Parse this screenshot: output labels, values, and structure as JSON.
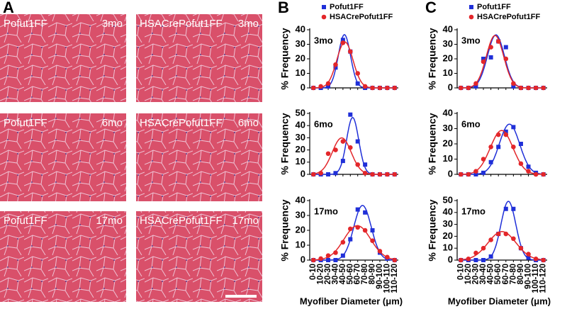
{
  "panel_a": {
    "label": "A",
    "tiles": [
      {
        "genotype": "Pofut1FF",
        "age": "3mo"
      },
      {
        "genotype": "HSACrePofut1FF",
        "age": "3mo"
      },
      {
        "genotype": "Pofut1FF",
        "age": "6mo"
      },
      {
        "genotype": "HSACrePofut1FF",
        "age": "6mo"
      },
      {
        "genotype": "Pofut1FF",
        "age": "17mo"
      },
      {
        "genotype": "HSACrePofut1FF",
        "age": "17mo"
      }
    ]
  },
  "panel_letters": [
    "B",
    "C"
  ],
  "chart_data": [
    {
      "type": "scatter",
      "annotation": "3mo",
      "ylabel": "% Frequency",
      "legend": "top",
      "categories": [
        "0-10",
        "10-20",
        "20-30",
        "30-40",
        "40-50",
        "50-60",
        "60-70",
        "70-80",
        "80-90",
        "90-100",
        "100-110",
        "110-120"
      ],
      "ylim": [
        0,
        40
      ],
      "yticks": [
        0,
        10,
        20,
        30,
        40
      ],
      "series": [
        {
          "name": "Pofut1FF",
          "marker": "square",
          "color": "#1f2fd8",
          "values": [
            0,
            0,
            1,
            14,
            33,
            25,
            3,
            0,
            0,
            0,
            0,
            0
          ]
        },
        {
          "name": "HSACrePofut1FF",
          "marker": "circle",
          "color": "#e3262a",
          "values": [
            0,
            1,
            3,
            16,
            31,
            25,
            10,
            1,
            0,
            0,
            0,
            0
          ]
        }
      ]
    },
    {
      "type": "scatter",
      "annotation": "6mo",
      "ylabel": "% Frequency",
      "categories": [
        "0-10",
        "10-20",
        "20-30",
        "30-40",
        "40-50",
        "50-60",
        "60-70",
        "70-80",
        "80-90",
        "90-100",
        "100-110",
        "110-120"
      ],
      "ylim": [
        0,
        50
      ],
      "yticks": [
        0,
        10,
        20,
        30,
        40,
        50
      ],
      "series": [
        {
          "marker": "square",
          "color": "#1f2fd8",
          "values": [
            0,
            0,
            0,
            1,
            11,
            49,
            27,
            8,
            0,
            0,
            0,
            0
          ]
        },
        {
          "marker": "circle",
          "color": "#e3262a",
          "values": [
            0,
            1,
            17,
            20,
            27,
            22,
            8,
            1,
            0,
            0,
            0,
            0
          ]
        }
      ]
    },
    {
      "type": "scatter",
      "annotation": "17mo",
      "ylabel": "% Frequency",
      "xlabel": "Myofiber Diameter (μm)",
      "categories": [
        "0-10",
        "10-20",
        "20-30",
        "30-40",
        "40-50",
        "50-60",
        "60-70",
        "70-80",
        "80-90",
        "90-100",
        "100-110",
        "110-120"
      ],
      "ylim": [
        0,
        40
      ],
      "yticks": [
        0,
        10,
        20,
        30,
        40
      ],
      "series": [
        {
          "marker": "square",
          "color": "#1f2fd8",
          "values": [
            0,
            0,
            0,
            0,
            3,
            14,
            34,
            32,
            20,
            5,
            1,
            0
          ]
        },
        {
          "marker": "circle",
          "color": "#e3262a",
          "values": [
            0,
            1,
            3,
            5,
            12,
            21,
            22,
            20,
            13,
            6,
            2,
            0
          ]
        }
      ]
    },
    {
      "type": "scatter",
      "annotation": "3mo",
      "ylabel": "% Frequency",
      "legend": "top",
      "categories": [
        "0-10",
        "10-20",
        "20-30",
        "30-40",
        "40-50",
        "50-60",
        "60-70",
        "70-80",
        "80-90",
        "90-100",
        "100-110",
        "110-120"
      ],
      "ylim": [
        0,
        40
      ],
      "yticks": [
        0,
        10,
        20,
        30,
        40
      ],
      "series": [
        {
          "name": "Pofut1FF",
          "marker": "square",
          "color": "#1f2fd8",
          "values": [
            0,
            0,
            1,
            20,
            21,
            32,
            28,
            1,
            0,
            0,
            0,
            0
          ]
        },
        {
          "name": "HSACrePofut1FF",
          "marker": "circle",
          "color": "#e3262a",
          "values": [
            0,
            0,
            3,
            18,
            28,
            32,
            20,
            3,
            0,
            0,
            0,
            0
          ]
        }
      ]
    },
    {
      "type": "scatter",
      "annotation": "6mo",
      "ylabel": "% Frequency",
      "categories": [
        "0-10",
        "10-20",
        "20-30",
        "30-40",
        "40-50",
        "50-60",
        "60-70",
        "70-80",
        "80-90",
        "90-100",
        "100-110",
        "110-120"
      ],
      "ylim": [
        0,
        40
      ],
      "yticks": [
        0,
        10,
        20,
        30,
        40
      ],
      "series": [
        {
          "marker": "square",
          "color": "#1f2fd8",
          "values": [
            0,
            0,
            0,
            1,
            8,
            18,
            28,
            31,
            20,
            5,
            1,
            0
          ]
        },
        {
          "marker": "circle",
          "color": "#e3262a",
          "values": [
            0,
            0,
            2,
            10,
            18,
            26,
            26,
            18,
            7,
            2,
            0,
            0
          ]
        }
      ]
    },
    {
      "type": "scatter",
      "annotation": "17mo",
      "ylabel": "% Frequency",
      "xlabel": "Myofiber Diameter (μm)",
      "categories": [
        "0-10",
        "10-20",
        "20-30",
        "30-40",
        "40-50",
        "50-60",
        "60-70",
        "70-80",
        "80-90",
        "90-100",
        "100-110",
        "110-120"
      ],
      "ylim": [
        0,
        50
      ],
      "yticks": [
        0,
        10,
        20,
        30,
        40,
        50
      ],
      "series": [
        {
          "marker": "square",
          "color": "#1f2fd8",
          "values": [
            0,
            0,
            0,
            0,
            3,
            22,
            43,
            43,
            10,
            2,
            0,
            0
          ]
        },
        {
          "marker": "circle",
          "color": "#e3262a",
          "values": [
            0,
            1,
            6,
            10,
            17,
            22,
            22,
            18,
            10,
            5,
            1,
            0
          ]
        }
      ]
    }
  ]
}
